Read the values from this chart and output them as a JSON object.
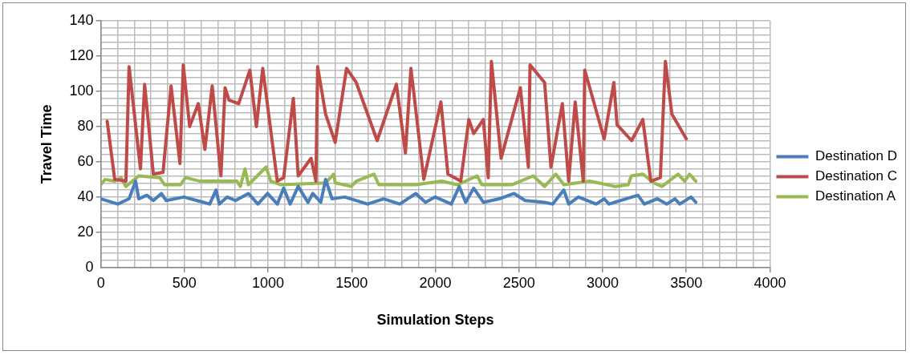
{
  "chart_data": {
    "type": "line",
    "xlabel": "Simulation Steps",
    "ylabel": "Travel Time",
    "xlim": [
      0,
      4000
    ],
    "ylim": [
      0,
      140
    ],
    "xticks": [
      0,
      {
        "value": 100,
        "label": null
      },
      {
        "value": 200,
        "label": null
      },
      {
        "value": 300,
        "label": null
      },
      {
        "value": 400,
        "label": null
      },
      500,
      {
        "value": 600,
        "label": null
      },
      {
        "value": 700,
        "label": null
      },
      {
        "value": 800,
        "label": null
      },
      {
        "value": 900,
        "label": null
      },
      1000,
      {
        "value": 1100,
        "label": null
      },
      {
        "value": 1200,
        "label": null
      },
      {
        "value": 1300,
        "label": null
      },
      {
        "value": 1400,
        "label": null
      },
      1500,
      {
        "value": 1600,
        "label": null
      },
      {
        "value": 1700,
        "label": null
      },
      {
        "value": 1800,
        "label": null
      },
      {
        "value": 1900,
        "label": null
      },
      2000,
      {
        "value": 2100,
        "label": null
      },
      {
        "value": 2200,
        "label": null
      },
      {
        "value": 2300,
        "label": null
      },
      {
        "value": 2400,
        "label": null
      },
      2500,
      {
        "value": 2600,
        "label": null
      },
      {
        "value": 2700,
        "label": null
      },
      {
        "value": 2800,
        "label": null
      },
      {
        "value": 2900,
        "label": null
      },
      3000,
      {
        "value": 3100,
        "label": null
      },
      {
        "value": 3200,
        "label": null
      },
      {
        "value": 3300,
        "label": null
      },
      {
        "value": 3400,
        "label": null
      },
      3500,
      {
        "value": 3600,
        "label": null
      },
      {
        "value": 3700,
        "label": null
      },
      {
        "value": 3800,
        "label": null
      },
      {
        "value": 3900,
        "label": null
      },
      4000
    ],
    "yticks": [
      0,
      {
        "value": 4,
        "label": null
      },
      {
        "value": 8,
        "label": null
      },
      {
        "value": 12,
        "label": null
      },
      {
        "value": 16,
        "label": null
      },
      20,
      {
        "value": 24,
        "label": null
      },
      {
        "value": 28,
        "label": null
      },
      {
        "value": 32,
        "label": null
      },
      {
        "value": 36,
        "label": null
      },
      40,
      {
        "value": 44,
        "label": null
      },
      {
        "value": 48,
        "label": null
      },
      {
        "value": 52,
        "label": null
      },
      {
        "value": 56,
        "label": null
      },
      60,
      {
        "value": 64,
        "label": null
      },
      {
        "value": 68,
        "label": null
      },
      {
        "value": 72,
        "label": null
      },
      {
        "value": 76,
        "label": null
      },
      80,
      {
        "value": 84,
        "label": null
      },
      {
        "value": 88,
        "label": null
      },
      {
        "value": 92,
        "label": null
      },
      {
        "value": 96,
        "label": null
      },
      100,
      {
        "value": 104,
        "label": null
      },
      {
        "value": 108,
        "label": null
      },
      {
        "value": 112,
        "label": null
      },
      {
        "value": 116,
        "label": null
      },
      120,
      {
        "value": 124,
        "label": null
      },
      {
        "value": 128,
        "label": null
      },
      {
        "value": 132,
        "label": null
      },
      {
        "value": 136,
        "label": null
      },
      140
    ],
    "grid": true,
    "legend": "right",
    "marker": "none",
    "line_style": "solid",
    "series": [
      {
        "name": "Destination D",
        "color": "#4a7ebb",
        "x": [
          0,
          102,
          169,
          208,
          227,
          275,
          314,
          362,
          391,
          497,
          574,
          651,
          689,
          708,
          756,
          805,
          882,
          939,
          997,
          1055,
          1093,
          1132,
          1180,
          1238,
          1267,
          1315,
          1344,
          1382,
          1459,
          1595,
          1691,
          1787,
          1883,
          1941,
          1999,
          2095,
          2143,
          2181,
          2229,
          2287,
          2383,
          2470,
          2537,
          2653,
          2701,
          2768,
          2797,
          2855,
          2961,
          3009,
          3038,
          3211,
          3249,
          3326,
          3384,
          3432,
          3461,
          3528,
          3557
        ],
        "values": [
          39,
          36,
          39,
          49,
          39,
          41,
          38,
          42,
          38,
          40,
          38,
          36,
          44,
          36,
          40,
          38,
          42,
          36,
          42,
          36,
          45,
          36,
          46,
          37,
          42,
          37,
          50,
          39,
          40,
          36,
          39,
          36,
          42,
          37,
          40,
          36,
          46,
          37,
          45,
          37,
          39,
          42,
          38,
          37,
          36,
          44,
          36,
          40,
          36,
          39,
          36,
          41,
          36,
          39,
          36,
          39,
          36,
          40,
          37
        ]
      },
      {
        "name": "Destination C",
        "color": "#be4b48",
        "x": [
          38,
          83,
          150,
          169,
          237,
          262,
          314,
          372,
          420,
          473,
          493,
          531,
          583,
          622,
          666,
          718,
          743,
          766,
          824,
          891,
          930,
          968,
          1055,
          1093,
          1151,
          1180,
          1257,
          1286,
          1296,
          1344,
          1401,
          1469,
          1527,
          1652,
          1767,
          1821,
          1854,
          1931,
          2033,
          2075,
          2152,
          2200,
          2229,
          2287,
          2316,
          2335,
          2393,
          2508,
          2556,
          2566,
          2653,
          2691,
          2759,
          2797,
          2836,
          2884,
          2893,
          3009,
          3067,
          3086,
          3173,
          3240,
          3288,
          3345,
          3375,
          3414,
          3500
        ],
        "values": [
          83,
          50,
          49,
          114,
          56,
          104,
          53,
          54,
          103,
          59,
          115,
          80,
          93,
          67,
          103,
          52,
          102,
          95,
          93,
          112,
          80,
          113,
          49,
          51,
          96,
          52,
          62,
          49,
          114,
          87,
          71,
          113,
          105,
          72,
          104,
          65,
          113,
          50,
          94,
          53,
          49,
          84,
          76,
          84,
          51,
          117,
          62,
          102,
          57,
          115,
          105,
          57,
          93,
          49,
          94,
          49,
          112,
          73,
          105,
          81,
          72,
          84,
          49,
          51,
          117,
          87,
          73
        ]
      },
      {
        "name": "Destination A",
        "color": "#98b954",
        "x": [
          0,
          25,
          83,
          121,
          150,
          227,
          352,
          381,
          477,
          506,
          593,
          814,
          834,
          862,
          882,
          988,
          1016,
          1074,
          1344,
          1392,
          1402,
          1498,
          1527,
          1633,
          1662,
          1883,
          2037,
          2133,
          2249,
          2278,
          2460,
          2585,
          2653,
          2720,
          2768,
          2922,
          3076,
          3153,
          3172,
          3240,
          3307,
          3355,
          3451,
          3490,
          3519,
          3557
        ],
        "values": [
          47,
          50,
          49,
          51,
          46,
          52,
          51,
          47,
          47,
          51,
          49,
          49,
          46,
          56,
          47,
          57,
          49,
          47,
          48,
          53,
          48,
          46,
          49,
          53,
          47,
          47,
          49,
          47,
          52,
          47,
          47,
          52,
          46,
          53,
          47,
          49,
          46,
          47,
          52,
          53,
          48,
          46,
          53,
          49,
          53,
          49
        ]
      }
    ]
  }
}
